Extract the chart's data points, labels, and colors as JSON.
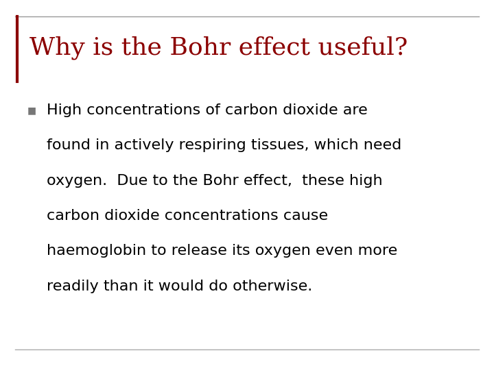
{
  "title": "Why is the Bohr effect useful?",
  "title_color": "#8B0000",
  "title_fontsize": 26,
  "title_font": "serif",
  "bullet_marker": "■",
  "bullet_color": "#777777",
  "bullet_lines": [
    "High concentrations of carbon dioxide are",
    "found in actively respiring tissues, which need",
    "oxygen.  Due to the Bohr effect,  these high",
    "carbon dioxide concentrations cause",
    "haemoglobin to release its oxygen even more",
    "readily than it would do otherwise."
  ],
  "body_fontsize": 16,
  "body_font": "sans-serif",
  "body_color": "#000000",
  "bg_color": "#ffffff",
  "border_line_color": "#999999",
  "left_bar_color": "#8B0000",
  "bottom_line_color": "#aaaaaa"
}
